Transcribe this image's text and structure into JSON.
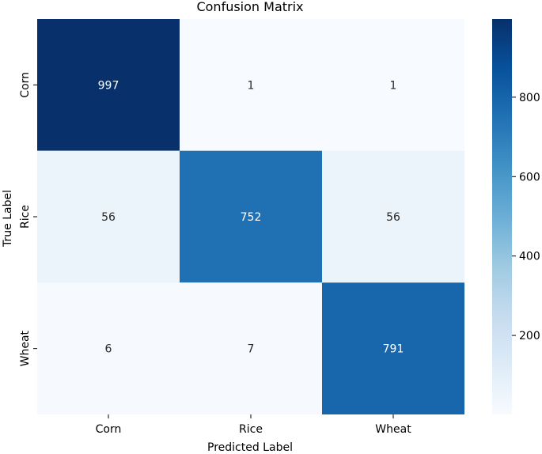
{
  "chart_data": {
    "type": "heatmap",
    "title": "Confusion Matrix",
    "xlabel": "Predicted Label",
    "ylabel": "True Label",
    "x_categories": [
      "Corn",
      "Rice",
      "Wheat"
    ],
    "y_categories": [
      "Corn",
      "Rice",
      "Wheat"
    ],
    "values": [
      [
        997,
        1,
        1
      ],
      [
        56,
        752,
        56
      ],
      [
        6,
        7,
        791
      ]
    ],
    "colormap": "Blues",
    "colorbar": {
      "range": [
        1,
        997
      ],
      "ticks": [
        200,
        400,
        600,
        800
      ]
    },
    "grid": false
  }
}
